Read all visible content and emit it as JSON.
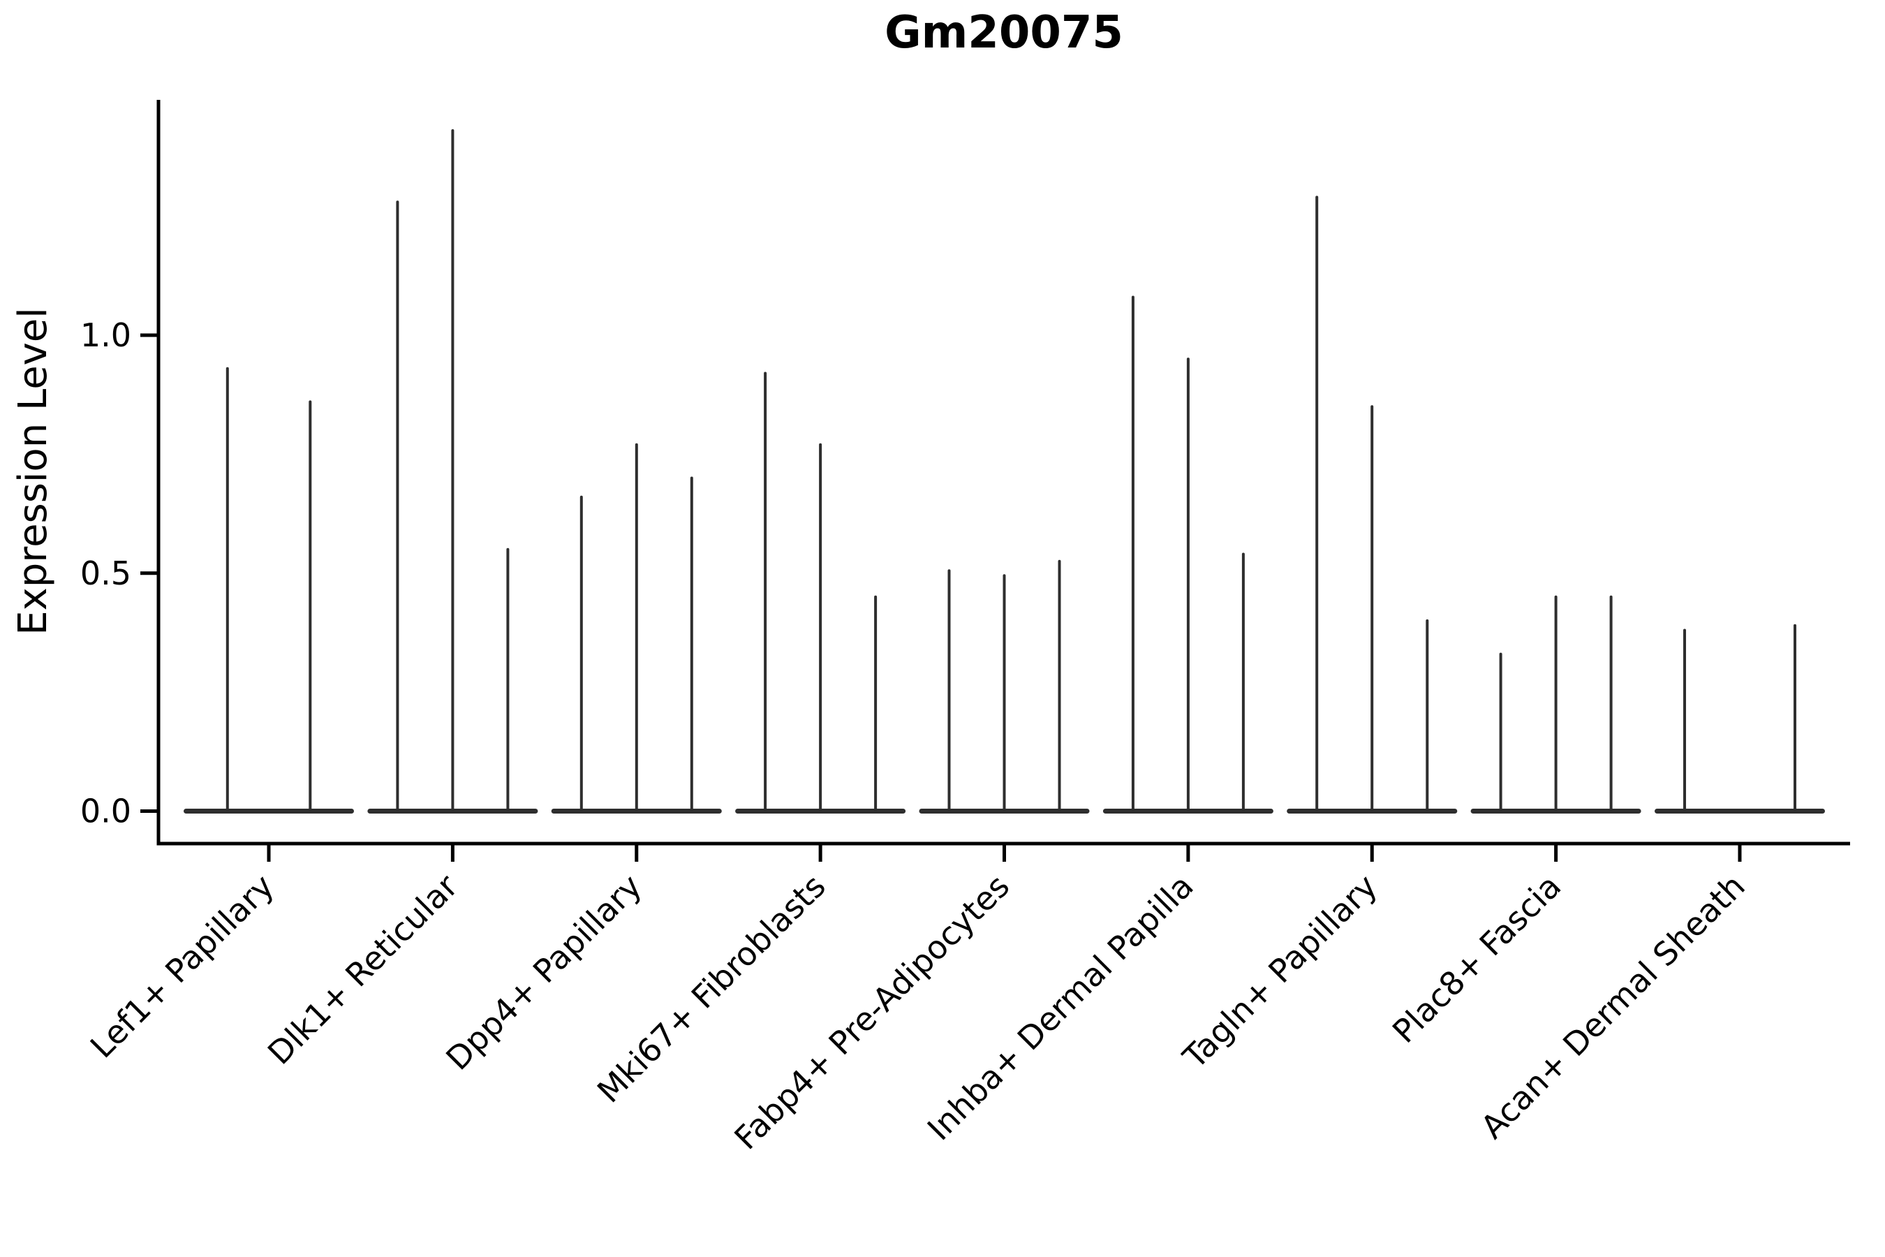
{
  "figure": {
    "background": "#ffffff"
  },
  "chart_data": {
    "type": "violin",
    "title": "Gm20075",
    "ylabel": "Expression Level",
    "xlabel": "",
    "yticks": [
      0.0,
      0.5,
      1.0
    ],
    "ylim": [
      0,
      1.49
    ],
    "grid": false,
    "legend_position": "none",
    "violin_color": "#2e2e2e",
    "axis_color": "#000000",
    "categories": [
      "Lef1+ Papillary",
      "Dlk1+ Reticular",
      "Dpp4+ Papillary",
      "Mki67+ Fibroblasts",
      "Fabp4+ Pre-Adipocytes",
      "Inhba+ Dermal Papilla",
      "Tagln+ Papillary",
      "Plac8+ Fascia",
      "Acan+ Dermal Sheath"
    ],
    "groups": [
      {
        "category": "Lef1+ Papillary",
        "violins": [
          {
            "offset": -0.225,
            "width": 0.45,
            "peak": 0.93
          },
          {
            "offset": 0.225,
            "width": 0.45,
            "peak": 0.86
          }
        ]
      },
      {
        "category": "Dlk1+ Reticular",
        "violins": [
          {
            "offset": -0.3,
            "width": 0.3,
            "peak": 1.28
          },
          {
            "offset": 0.0,
            "width": 0.3,
            "peak": 1.43
          },
          {
            "offset": 0.3,
            "width": 0.3,
            "peak": 0.55
          }
        ]
      },
      {
        "category": "Dpp4+ Papillary",
        "violins": [
          {
            "offset": -0.3,
            "width": 0.3,
            "peak": 0.66
          },
          {
            "offset": 0.0,
            "width": 0.3,
            "peak": 0.77
          },
          {
            "offset": 0.3,
            "width": 0.3,
            "peak": 0.7
          }
        ]
      },
      {
        "category": "Mki67+ Fibroblasts",
        "violins": [
          {
            "offset": -0.3,
            "width": 0.3,
            "peak": 0.92
          },
          {
            "offset": 0.0,
            "width": 0.3,
            "peak": 0.77
          },
          {
            "offset": 0.3,
            "width": 0.3,
            "peak": 0.45
          }
        ]
      },
      {
        "category": "Fabp4+ Pre-Adipocytes",
        "violins": [
          {
            "offset": -0.3,
            "width": 0.3,
            "peak": 0.505
          },
          {
            "offset": 0.0,
            "width": 0.3,
            "peak": 0.495
          },
          {
            "offset": 0.3,
            "width": 0.3,
            "peak": 0.525
          }
        ]
      },
      {
        "category": "Inhba+ Dermal Papilla",
        "violins": [
          {
            "offset": -0.3,
            "width": 0.3,
            "peak": 1.08
          },
          {
            "offset": 0.0,
            "width": 0.3,
            "peak": 0.95
          },
          {
            "offset": 0.3,
            "width": 0.3,
            "peak": 0.54
          }
        ]
      },
      {
        "category": "Tagln+ Papillary",
        "violins": [
          {
            "offset": -0.3,
            "width": 0.3,
            "peak": 1.29
          },
          {
            "offset": 0.0,
            "width": 0.3,
            "peak": 0.85
          },
          {
            "offset": 0.3,
            "width": 0.3,
            "peak": 0.4
          }
        ]
      },
      {
        "category": "Plac8+ Fascia",
        "violins": [
          {
            "offset": -0.3,
            "width": 0.3,
            "peak": 0.33
          },
          {
            "offset": 0.0,
            "width": 0.3,
            "peak": 0.45
          },
          {
            "offset": 0.3,
            "width": 0.3,
            "peak": 0.45
          }
        ]
      },
      {
        "category": "Acan+ Dermal Sheath",
        "violins": [
          {
            "offset": -0.3,
            "width": 0.3,
            "peak": 0.38
          },
          {
            "offset": 0.0,
            "width": 0.3,
            "peak": 0.0
          },
          {
            "offset": 0.3,
            "width": 0.3,
            "peak": 0.39
          }
        ]
      }
    ]
  }
}
